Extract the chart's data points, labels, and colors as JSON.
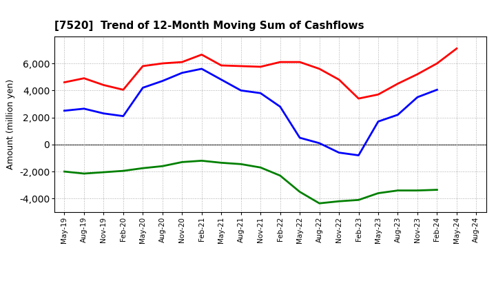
{
  "title": "[7520]  Trend of 12-Month Moving Sum of Cashflows",
  "ylabel": "Amount (million yen)",
  "background_color": "#ffffff",
  "plot_background_color": "#ffffff",
  "grid_color": "#aaaaaa",
  "x_labels": [
    "May-19",
    "Aug-19",
    "Nov-19",
    "Feb-20",
    "May-20",
    "Aug-20",
    "Nov-20",
    "Feb-21",
    "May-21",
    "Aug-21",
    "Nov-21",
    "Feb-22",
    "May-22",
    "Aug-22",
    "Nov-22",
    "Feb-23",
    "May-23",
    "Aug-23",
    "Nov-23",
    "Feb-24",
    "May-24",
    "Aug-24"
  ],
  "operating": [
    4600,
    4900,
    4400,
    4050,
    5800,
    6000,
    6100,
    6650,
    5850,
    5800,
    5750,
    6100,
    6100,
    5600,
    4800,
    3400,
    3700,
    4500,
    5200,
    6000,
    7100,
    null
  ],
  "investing": [
    -2000,
    -2150,
    -2050,
    -1950,
    -1750,
    -1600,
    -1300,
    -1200,
    -1350,
    -1450,
    -1700,
    -2300,
    -3500,
    -4350,
    -4200,
    -4100,
    -3600,
    -3400,
    -3400,
    -3350,
    null,
    null
  ],
  "free": [
    2500,
    2650,
    2300,
    2100,
    4200,
    4700,
    5300,
    5600,
    4800,
    4000,
    3800,
    2800,
    500,
    100,
    -600,
    -800,
    1700,
    2200,
    3500,
    4050,
    null,
    null
  ],
  "ylim": [
    -5000,
    8000
  ],
  "yticks": [
    -4000,
    -2000,
    0,
    2000,
    4000,
    6000
  ],
  "line_colors": {
    "operating": "#ff0000",
    "investing": "#008000",
    "free": "#0000ff"
  },
  "line_width": 2.0
}
